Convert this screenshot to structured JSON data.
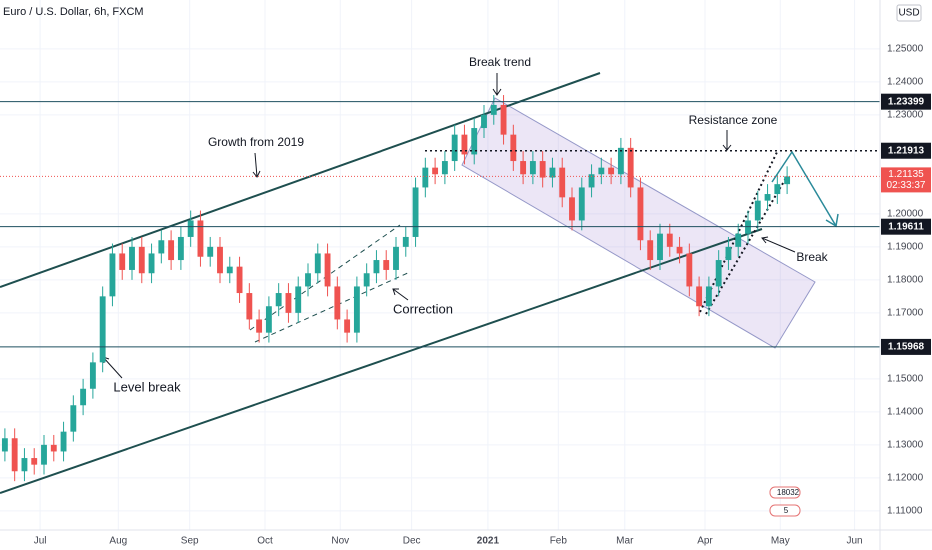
{
  "chart_data": {
    "type": "candlestick",
    "title": "Euro / U.S. Dollar, 6h, FXCM",
    "currency": "USD",
    "up_color": "#26a69a",
    "down_color": "#ef5350",
    "categories": [
      null,
      null,
      null,
      null,
      null,
      null,
      null,
      null,
      null,
      null,
      null,
      null,
      null,
      null,
      null,
      null,
      null,
      null,
      null,
      null,
      null,
      null,
      null,
      null,
      null,
      null,
      null,
      null,
      null,
      null,
      null,
      null,
      null,
      null,
      null,
      null,
      null,
      null,
      null,
      null,
      null,
      null,
      null,
      null,
      null,
      null,
      null,
      null,
      null,
      null,
      null,
      null,
      null,
      null,
      null,
      null,
      null,
      null,
      null,
      null,
      null,
      null,
      null,
      null,
      null,
      null,
      null,
      null,
      null,
      null,
      null,
      null,
      null,
      null,
      null,
      null,
      null,
      null,
      null,
      null,
      null
    ],
    "open": [
      1.128,
      1.132,
      1.122,
      1.126,
      1.124,
      1.13,
      1.128,
      1.134,
      1.142,
      1.147,
      1.155,
      1.175,
      1.188,
      1.183,
      1.19,
      1.182,
      1.188,
      1.192,
      1.186,
      1.193,
      1.198,
      1.187,
      1.19,
      1.182,
      1.184,
      1.176,
      1.168,
      1.164,
      1.172,
      1.176,
      1.17,
      1.178,
      1.182,
      1.188,
      1.178,
      1.168,
      1.164,
      1.178,
      1.182,
      1.186,
      1.183,
      1.19,
      1.193,
      1.208,
      1.214,
      1.212,
      1.216,
      1.224,
      1.218,
      1.226,
      1.23,
      1.233,
      1.224,
      1.216,
      1.212,
      1.216,
      1.211,
      1.214,
      1.205,
      1.198,
      1.208,
      1.212,
      1.214,
      1.212,
      1.22,
      1.208,
      1.192,
      1.186,
      1.194,
      1.19,
      1.188,
      1.178,
      1.172,
      1.178,
      1.186,
      1.19,
      1.194,
      1.198,
      1.204,
      1.206,
      1.209
    ],
    "high": [
      1.135,
      1.135,
      1.129,
      1.129,
      1.133,
      1.133,
      1.137,
      1.145,
      1.15,
      1.158,
      1.178,
      1.191,
      1.191,
      1.193,
      1.193,
      1.191,
      1.195,
      1.195,
      1.196,
      1.201,
      1.201,
      1.193,
      1.193,
      1.187,
      1.187,
      1.179,
      1.171,
      1.175,
      1.179,
      1.179,
      1.181,
      1.185,
      1.191,
      1.191,
      1.181,
      1.171,
      1.181,
      1.185,
      1.189,
      1.189,
      1.193,
      1.196,
      1.211,
      1.217,
      1.217,
      1.219,
      1.227,
      1.227,
      1.229,
      1.233,
      1.236,
      1.236,
      1.227,
      1.219,
      1.219,
      1.219,
      1.217,
      1.217,
      1.208,
      1.211,
      1.215,
      1.217,
      1.217,
      1.223,
      1.223,
      1.211,
      1.195,
      1.197,
      1.197,
      1.193,
      1.191,
      1.181,
      1.181,
      1.189,
      1.193,
      1.197,
      1.201,
      1.207,
      1.209,
      1.212,
      1.2144
    ],
    "low": [
      1.125,
      1.119,
      1.119,
      1.121,
      1.121,
      1.125,
      1.125,
      1.131,
      1.139,
      1.144,
      1.152,
      1.172,
      1.18,
      1.18,
      1.179,
      1.179,
      1.185,
      1.183,
      1.183,
      1.19,
      1.184,
      1.184,
      1.179,
      1.179,
      1.173,
      1.165,
      1.161,
      1.161,
      1.169,
      1.167,
      1.167,
      1.175,
      1.179,
      1.175,
      1.165,
      1.161,
      1.161,
      1.175,
      1.179,
      1.18,
      1.18,
      1.187,
      1.19,
      1.205,
      1.209,
      1.209,
      1.213,
      1.215,
      1.215,
      1.223,
      1.227,
      1.221,
      1.213,
      1.209,
      1.209,
      1.208,
      1.208,
      1.202,
      1.195,
      1.195,
      1.205,
      1.209,
      1.209,
      1.209,
      1.205,
      1.189,
      1.183,
      1.183,
      1.187,
      1.185,
      1.175,
      1.169,
      1.169,
      1.175,
      1.183,
      1.187,
      1.191,
      1.195,
      1.201,
      1.203,
      1.206
    ],
    "close": [
      1.132,
      1.122,
      1.126,
      1.124,
      1.13,
      1.128,
      1.134,
      1.142,
      1.147,
      1.155,
      1.175,
      1.188,
      1.183,
      1.19,
      1.182,
      1.188,
      1.192,
      1.186,
      1.193,
      1.198,
      1.187,
      1.19,
      1.182,
      1.184,
      1.176,
      1.168,
      1.164,
      1.172,
      1.176,
      1.17,
      1.178,
      1.182,
      1.188,
      1.178,
      1.168,
      1.164,
      1.178,
      1.182,
      1.186,
      1.183,
      1.19,
      1.193,
      1.208,
      1.214,
      1.212,
      1.216,
      1.224,
      1.218,
      1.226,
      1.23,
      1.233,
      1.224,
      1.216,
      1.212,
      1.216,
      1.211,
      1.214,
      1.205,
      1.198,
      1.208,
      1.212,
      1.214,
      1.212,
      1.22,
      1.208,
      1.192,
      1.186,
      1.194,
      1.19,
      1.188,
      1.178,
      1.172,
      1.178,
      1.186,
      1.19,
      1.194,
      1.198,
      1.204,
      1.206,
      1.209,
      1.21135
    ],
    "countdown": "02:33:37",
    "xlim": [
      -0.5,
      89.5
    ],
    "xticks": [
      {
        "value": 3.6,
        "label": "Jul"
      },
      {
        "value": 11.6,
        "label": "Aug"
      },
      {
        "value": 18.9,
        "label": "Sep"
      },
      {
        "value": 26.6,
        "label": "Oct"
      },
      {
        "value": 34.3,
        "label": "Nov"
      },
      {
        "value": 41.6,
        "label": "Dec"
      },
      {
        "value": 49.4,
        "label": "2021"
      },
      {
        "value": 56.6,
        "label": "Feb"
      },
      {
        "value": 63.4,
        "label": "Mar"
      },
      {
        "value": 71.6,
        "label": "Apr"
      },
      {
        "value": 79.3,
        "label": "May"
      },
      {
        "value": 86.9,
        "label": "Jun"
      }
    ],
    "ylim": [
      1.1042,
      1.2648
    ],
    "yticks": [
      {
        "value": 1.25,
        "label": "1.25000"
      },
      {
        "value": 1.24,
        "label": "1.24000"
      },
      {
        "value": 1.23,
        "label": "1.23000"
      },
      {
        "value": 1.2,
        "label": "1.20000"
      },
      {
        "value": 1.19,
        "label": "1.19000"
      },
      {
        "value": 1.18,
        "label": "1.18000"
      },
      {
        "value": 1.17,
        "label": "1.17000"
      },
      {
        "value": 1.15,
        "label": "1.15000"
      },
      {
        "value": 1.14,
        "label": "1.14000"
      },
      {
        "value": 1.13,
        "label": "1.13000"
      },
      {
        "value": 1.12,
        "label": "1.12000"
      },
      {
        "value": 1.11,
        "label": "1.11000"
      }
    ],
    "grid": true,
    "levels": [
      1.23399,
      1.21913,
      1.19611,
      1.15968
    ],
    "annotations": [
      "Break trend",
      "Growth from 2019",
      "Resistance zone",
      "Break",
      "Correction",
      "Level break"
    ],
    "badges": [
      "18032",
      "5"
    ]
  }
}
